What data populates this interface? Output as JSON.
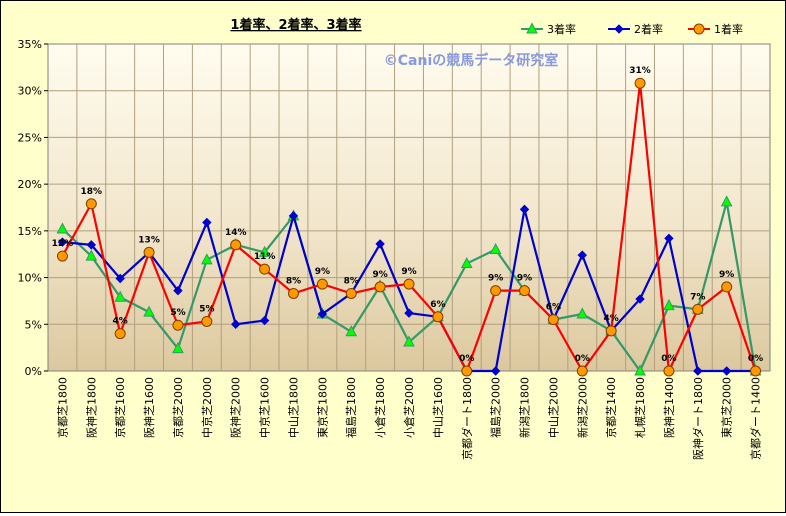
{
  "chart_data": {
    "type": "line",
    "title": "1着率、2着率、3着率",
    "watermark": "©Caniの競馬データ研究室",
    "xlabel": "",
    "ylabel": "",
    "ylim": [
      0,
      35
    ],
    "yticks": [
      "0%",
      "5%",
      "10%",
      "15%",
      "20%",
      "25%",
      "30%",
      "35%"
    ],
    "ytick_values": [
      0,
      5,
      10,
      15,
      20,
      25,
      30,
      35
    ],
    "grid": true,
    "legend_position": "top-right",
    "categories": [
      "京都芝1800",
      "阪神芝1800",
      "京都芝1600",
      "阪神芝1600",
      "京都芝2000",
      "中京芝2000",
      "阪神芝2000",
      "中京芝1600",
      "中山芝1800",
      "東京芝1800",
      "福島芝1800",
      "小倉芝1800",
      "小倉芝2000",
      "中山芝1600",
      "京都ダート1800",
      "福島芝2000",
      "新潟芝1800",
      "中山芝2000",
      "新潟芝2000",
      "京都芝1400",
      "札幌芝1800",
      "阪神芝1400",
      "阪神ダート1800",
      "東京芝2000",
      "京都ダート1400"
    ],
    "series": [
      {
        "name": "3着率",
        "color": "#339966",
        "marker": "triangle",
        "marker_fill": "#00ff00",
        "values": [
          15.2,
          12.3,
          7.9,
          6.3,
          2.4,
          11.9,
          13.5,
          12.7,
          16.6,
          6.1,
          4.2,
          9.1,
          3.1,
          5.8,
          11.5,
          13.0,
          8.6,
          5.5,
          6.1,
          4.3,
          0,
          7.0,
          6.6,
          18.1,
          0
        ]
      },
      {
        "name": "2着率",
        "color": "#0000cc",
        "marker": "diamond",
        "marker_fill": "#0000cc",
        "values": [
          13.8,
          13.5,
          9.9,
          12.7,
          8.6,
          15.9,
          5.0,
          5.4,
          16.6,
          6.1,
          8.3,
          13.6,
          6.2,
          5.8,
          0,
          0,
          17.3,
          5.5,
          12.4,
          4.3,
          7.7,
          14.2,
          0,
          0,
          0
        ]
      },
      {
        "name": "1着率",
        "color": "#ff0000",
        "marker": "circle",
        "marker_fill": "#ff9900",
        "values": [
          12.3,
          17.9,
          4.0,
          12.7,
          4.9,
          5.3,
          13.5,
          10.9,
          8.3,
          9.3,
          8.3,
          9.0,
          9.3,
          5.8,
          0,
          8.6,
          8.6,
          5.5,
          0,
          4.3,
          30.8,
          0,
          6.6,
          9.0,
          0
        ],
        "labels": [
          "12%",
          "18%",
          "4%",
          "13%",
          "5%",
          "5%",
          "14%",
          "11%",
          "8%",
          "9%",
          "8%",
          "9%",
          "9%",
          "6%",
          "0%",
          "9%",
          "9%",
          "6%",
          "0%",
          "4%",
          "31%",
          "0%",
          "7%",
          "9%",
          "0%"
        ]
      }
    ]
  }
}
